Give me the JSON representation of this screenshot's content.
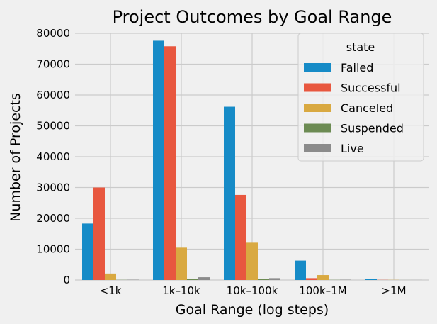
{
  "chart_data": {
    "type": "bar",
    "title": "Project Outcomes by Goal Range",
    "xlabel": "Goal Range (log steps)",
    "ylabel": "Number of Projects",
    "categories": [
      "<1k",
      "1k–10k",
      "10k–100k",
      "100k–1M",
      ">1M"
    ],
    "ylim": [
      0,
      80000
    ],
    "yticks": [
      0,
      10000,
      20000,
      30000,
      40000,
      50000,
      60000,
      70000,
      80000
    ],
    "grid": true,
    "legend_title": "state",
    "legend_position": "top-right",
    "series": [
      {
        "name": "Failed",
        "color": "#168bc7",
        "values": [
          18300,
          77600,
          56200,
          6300,
          400
        ]
      },
      {
        "name": "Successful",
        "color": "#e8573f",
        "values": [
          30000,
          75800,
          27600,
          600,
          50
        ]
      },
      {
        "name": "Canceled",
        "color": "#d9a941",
        "values": [
          2100,
          10500,
          12100,
          1600,
          50
        ]
      },
      {
        "name": "Suspended",
        "color": "#6c8b53",
        "values": [
          50,
          300,
          300,
          50,
          10
        ]
      },
      {
        "name": "Live",
        "color": "#8b8b8b",
        "values": [
          100,
          900,
          600,
          100,
          20
        ]
      }
    ]
  }
}
